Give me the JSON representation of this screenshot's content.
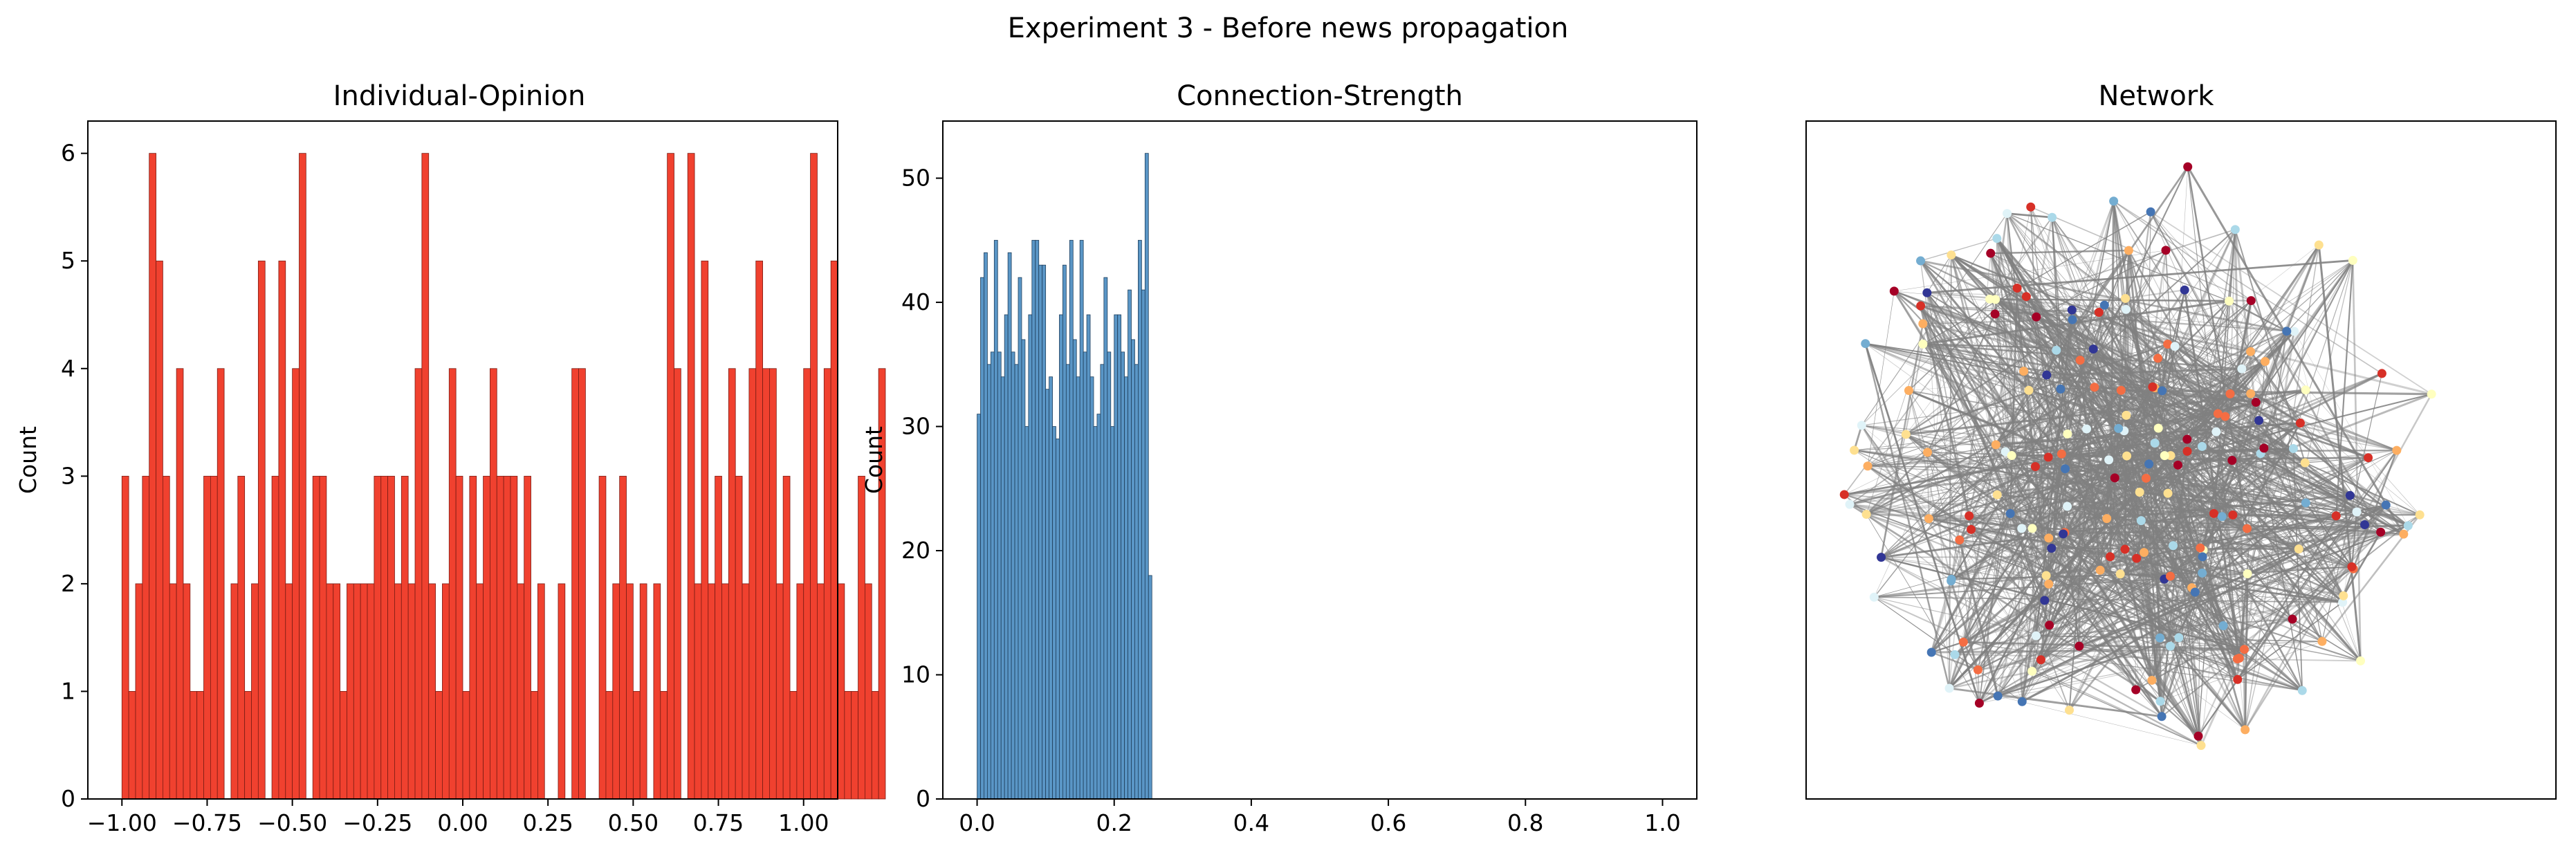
{
  "figure": {
    "suptitle": "Experiment 3 - Before news propagation"
  },
  "chart_data": [
    {
      "type": "bar",
      "subtype": "histogram",
      "title": "Individual-Opinion",
      "xlabel": "",
      "ylabel": "Count",
      "xlim": [
        -1.1,
        1.1
      ],
      "ylim": [
        0,
        6.3
      ],
      "xticks": [
        -1.0,
        -0.75,
        -0.5,
        -0.25,
        0.0,
        0.25,
        0.5,
        0.75,
        1.0
      ],
      "xtick_labels": [
        "−1.00",
        "−0.75",
        "−0.50",
        "−0.25",
        "0.00",
        "0.25",
        "0.50",
        "0.75",
        "1.00"
      ],
      "yticks": [
        0,
        1,
        2,
        3,
        4,
        5,
        6
      ],
      "ytick_labels": [
        "0",
        "1",
        "2",
        "3",
        "4",
        "5",
        "6"
      ],
      "bin_start": -1.0,
      "bin_width": 0.02,
      "counts": [
        3,
        1,
        2,
        3,
        6,
        5,
        3,
        2,
        4,
        2,
        1,
        1,
        3,
        3,
        4,
        0,
        2,
        3,
        1,
        2,
        5,
        0,
        3,
        5,
        2,
        4,
        6,
        0,
        3,
        3,
        2,
        2,
        1,
        2,
        2,
        2,
        2,
        3,
        3,
        3,
        2,
        3,
        2,
        4,
        6,
        2,
        1,
        2,
        4,
        3,
        1,
        3,
        2,
        3,
        4,
        3,
        3,
        3,
        2,
        3,
        1,
        2,
        0,
        0,
        2,
        0,
        4,
        4,
        0,
        0,
        3,
        1,
        2,
        3,
        2,
        1,
        2,
        0,
        2,
        1,
        6,
        4,
        0,
        6,
        2,
        5,
        2,
        3,
        2,
        4,
        3,
        2,
        4,
        5,
        4,
        4,
        2,
        3,
        1,
        2,
        4,
        6,
        2,
        4,
        5,
        2,
        1,
        1,
        3,
        2,
        1,
        4
      ],
      "bar_color": "#f0412f",
      "edge_color": "#7a1c14"
    },
    {
      "type": "bar",
      "subtype": "histogram",
      "title": "Connection-Strength",
      "xlabel": "",
      "ylabel": "Count",
      "xlim": [
        -0.05,
        1.05
      ],
      "ylim": [
        0,
        54.6
      ],
      "xticks": [
        0.0,
        0.2,
        0.4,
        0.6,
        0.8,
        1.0
      ],
      "xtick_labels": [
        "0.0",
        "0.2",
        "0.4",
        "0.6",
        "0.8",
        "1.0"
      ],
      "yticks": [
        0,
        10,
        20,
        30,
        40,
        50
      ],
      "ytick_labels": [
        "0",
        "10",
        "20",
        "30",
        "40",
        "50"
      ],
      "bin_start": 0.0,
      "bin_width": 0.005,
      "counts": [
        31,
        42,
        44,
        35,
        36,
        45,
        36,
        34,
        39,
        44,
        36,
        35,
        42,
        37,
        30,
        39,
        45,
        45,
        43,
        43,
        33,
        34,
        30,
        29,
        39,
        43,
        35,
        45,
        37,
        34,
        45,
        36,
        39,
        34,
        30,
        31,
        35,
        42,
        36,
        30,
        39,
        39,
        36,
        34,
        41,
        37,
        35,
        45,
        41,
        52,
        18
      ],
      "bar_color": "#5a96c6",
      "edge_color": "#1f3f5c"
    },
    {
      "type": "network",
      "title": "Network",
      "node_count": 200,
      "node_colors": [
        "#a50026",
        "#d73027",
        "#f46d43",
        "#fdae61",
        "#fee090",
        "#ffffbf",
        "#e0f3f8",
        "#abd9e9",
        "#74add1",
        "#4575b4",
        "#313695"
      ],
      "edge_color": "#808080"
    }
  ]
}
